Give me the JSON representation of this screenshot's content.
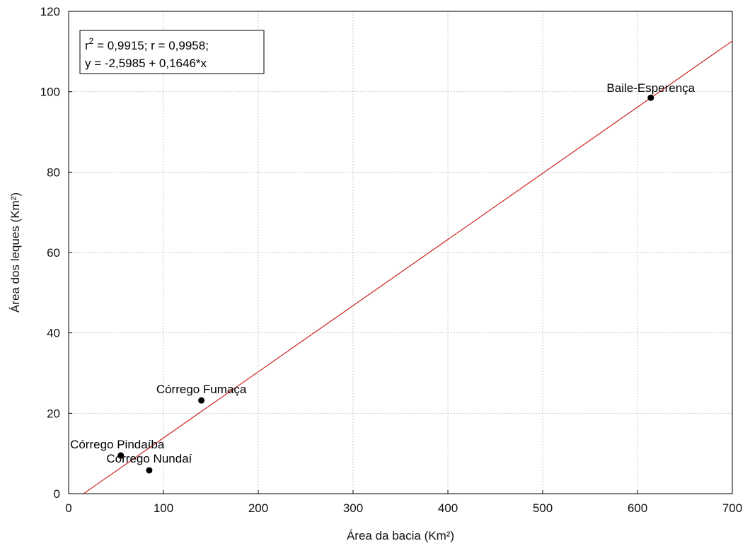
{
  "chart_data": {
    "type": "scatter",
    "title": "",
    "xlabel": "Área da bacia (Km²)",
    "ylabel": "Área dos leques (Km²)",
    "xlim": [
      0,
      700
    ],
    "ylim": [
      0,
      120
    ],
    "xticks": [
      0,
      100,
      200,
      300,
      400,
      500,
      600,
      700
    ],
    "yticks": [
      0,
      20,
      40,
      60,
      80,
      100,
      120
    ],
    "grid": true,
    "points": [
      {
        "label": "Baile-Esperença",
        "x": 614,
        "y": 98.5
      },
      {
        "label": "Córrego Fumaça",
        "x": 140,
        "y": 23.2
      },
      {
        "label": "Córrego Pindaíba",
        "x": 55,
        "y": 9.5
      },
      {
        "label": "Córrego Nundaí",
        "x": 85,
        "y": 5.8
      }
    ],
    "regression": {
      "intercept": -2.5985,
      "slope": 0.1646,
      "color": "#cc2222"
    },
    "stats_box": {
      "line1_r": "r",
      "line1_sup": "2",
      "line1_rest": " = 0,9915;  r = 0,9958;",
      "line2": "y = -2,5985 + 0,1646*x"
    },
    "point_color": "#000000"
  }
}
